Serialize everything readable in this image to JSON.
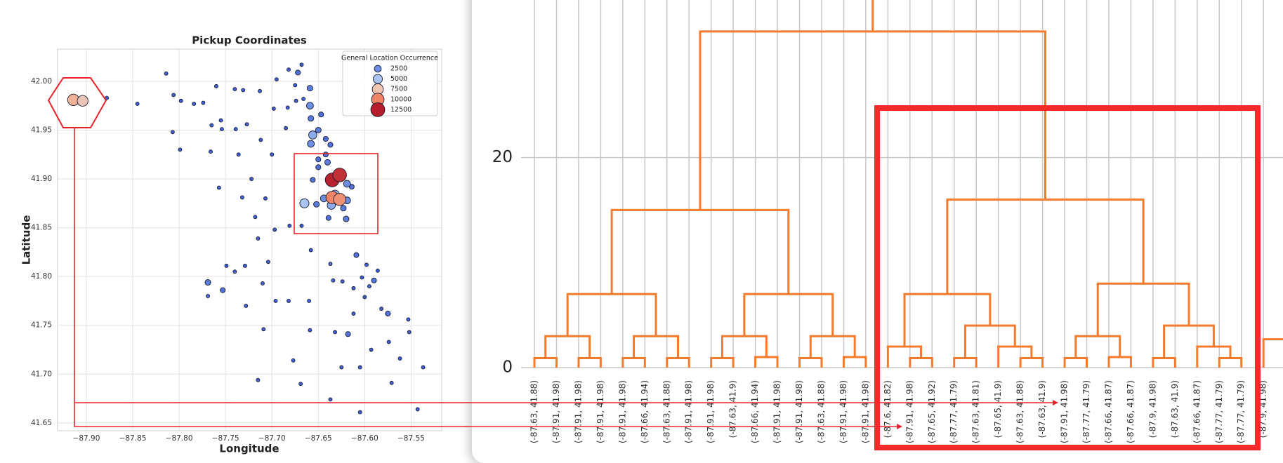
{
  "chart_data": [
    {
      "type": "scatter",
      "title": "Pickup Coordinates",
      "xlabel": "Longitude",
      "ylabel": "Latitude",
      "x": [
        -87.914,
        -87.904,
        -87.878,
        -87.814,
        -87.845,
        -87.806,
        -87.798,
        -87.784,
        -87.774,
        -87.807,
        -87.799,
        -87.76,
        -87.74,
        -87.731,
        -87.713,
        -87.765,
        -87.755,
        -87.754,
        -87.739,
        -87.727,
        -87.766,
        -87.736,
        -87.712,
        -87.722,
        -87.757,
        -87.732,
        -87.707,
        -87.718,
        -87.715,
        -87.749,
        -87.74,
        -87.729,
        -87.704,
        -87.769,
        -87.753,
        -87.769,
        -87.728,
        -87.71,
        -87.696,
        -87.682,
        -87.66,
        -87.709,
        -87.715,
        -87.677,
        -87.669,
        -87.659,
        -87.637,
        -87.605,
        -87.658,
        -87.697,
        -87.681,
        -87.668,
        -87.698,
        -87.695,
        -87.683,
        -87.682,
        -87.675,
        -87.668,
        -87.672,
        -87.685,
        -87.674,
        -87.666,
        -87.7,
        -87.637,
        -87.634,
        -87.624,
        -87.612,
        -87.609,
        -87.603,
        -87.598,
        -87.595,
        -87.59,
        -87.586,
        -87.612,
        -87.6,
        -87.618,
        -87.632,
        -87.625,
        -87.605,
        -87.593,
        -87.575,
        -87.582,
        -87.574,
        -87.562,
        -87.553,
        -87.552,
        -87.571,
        -87.543,
        -87.537,
        -87.659,
        -87.659,
        -87.658,
        -87.656,
        -87.658,
        -87.65,
        -87.647,
        -87.642,
        -87.637,
        -87.642,
        -87.65,
        -87.64,
        -87.632,
        -87.644,
        -87.619,
        -87.665,
        -87.636,
        -87.623,
        -87.62,
        -87.639,
        -87.652,
        -87.614,
        -87.656,
        -87.65,
        -87.619,
        -87.635,
        -87.627,
        -87.635,
        -87.627
      ],
      "y": [
        41.981,
        41.98,
        41.983,
        42.008,
        41.977,
        41.986,
        41.98,
        41.977,
        41.978,
        41.948,
        41.93,
        41.995,
        41.992,
        41.991,
        41.99,
        41.955,
        41.96,
        41.951,
        41.951,
        41.956,
        41.928,
        41.925,
        41.94,
        41.9,
        41.891,
        41.881,
        41.88,
        41.861,
        41.839,
        41.811,
        41.805,
        41.811,
        41.815,
        41.794,
        41.786,
        41.78,
        41.77,
        41.793,
        41.775,
        41.775,
        41.775,
        41.746,
        41.694,
        41.714,
        41.69,
        41.745,
        41.674,
        41.661,
        41.827,
        41.848,
        41.852,
        41.852,
        41.972,
        42.002,
        41.973,
        42.012,
        41.996,
        42.017,
        42.009,
        41.952,
        41.98,
        41.982,
        41.925,
        41.813,
        41.796,
        41.795,
        41.788,
        41.822,
        41.799,
        41.812,
        41.79,
        41.796,
        41.806,
        41.762,
        41.779,
        41.741,
        41.743,
        41.707,
        41.707,
        41.725,
        41.762,
        41.767,
        41.733,
        41.716,
        41.756,
        41.743,
        41.691,
        41.664,
        41.707,
        41.993,
        41.975,
        41.962,
        41.945,
        41.936,
        41.95,
        41.966,
        41.941,
        41.935,
        41.925,
        41.92,
        41.917,
        41.884,
        41.88,
        41.878,
        41.875,
        41.873,
        41.87,
        41.859,
        41.86,
        41.874,
        41.892,
        41.899,
        41.912,
        41.895,
        41.899,
        41.904,
        41.881,
        41.879
      ],
      "sizes": [
        8200,
        7200,
        100,
        100,
        100,
        100,
        100,
        100,
        100,
        100,
        100,
        100,
        100,
        100,
        100,
        100,
        100,
        100,
        100,
        100,
        100,
        100,
        100,
        100,
        100,
        100,
        100,
        100,
        100,
        100,
        100,
        100,
        100,
        1500,
        1000,
        100,
        100,
        100,
        100,
        100,
        100,
        100,
        100,
        100,
        100,
        100,
        100,
        100,
        100,
        100,
        100,
        100,
        100,
        100,
        100,
        100,
        100,
        100,
        1000,
        100,
        100,
        100,
        100,
        100,
        100,
        100,
        100,
        1000,
        100,
        100,
        100,
        1000,
        100,
        100,
        100,
        1000,
        100,
        100,
        100,
        100,
        1000,
        100,
        100,
        100,
        100,
        100,
        100,
        100,
        100,
        1500,
        2500,
        1500,
        3800,
        2500,
        1500,
        1000,
        1000,
        1000,
        1000,
        1000,
        1500,
        4500,
        2500,
        2500,
        5000,
        3800,
        1500,
        1500,
        1000,
        1500,
        1000,
        1000,
        1000,
        2500,
        12400,
        12000,
        10000,
        9500
      ],
      "xlim": [
        -87.931,
        -87.517
      ],
      "ylim": [
        41.642,
        42.033
      ],
      "xticks": [
        {
          "value": -87.9,
          "label": "−87.90"
        },
        {
          "value": -87.85,
          "label": "−87.85"
        },
        {
          "value": -87.8,
          "label": "−87.80"
        },
        {
          "value": -87.75,
          "label": "−87.75"
        },
        {
          "value": -87.7,
          "label": "−87.70"
        },
        {
          "value": -87.65,
          "label": "−87.65"
        },
        {
          "value": -87.6,
          "label": "−87.60"
        },
        {
          "value": -87.55,
          "label": "−87.55"
        }
      ],
      "yticks": [
        41.65,
        {
          "value": 41.7,
          "label": "41.70"
        },
        41.75,
        {
          "value": 41.8,
          "label": "41.80"
        },
        41.85,
        {
          "value": 41.9,
          "label": "41.90"
        },
        41.95,
        {
          "value": 42,
          "label": "42.00"
        }
      ],
      "grid": true,
      "low_color": "#3d5fd6",
      "edge_color": "#1b1b2f",
      "legend": {
        "title": "General Location Occurrence",
        "corner": "upper right",
        "sizes": [
          2500,
          5000,
          7500,
          10000,
          12500
        ],
        "colors": [
          "#6b8fe4",
          "#a9c4f2",
          "#f3c5ae",
          "#ee8466",
          "#b51d2c"
        ]
      }
    },
    {
      "type": "dendrogram",
      "color": "#f47a2c",
      "grid": true,
      "ylim": [
        0,
        35
      ],
      "yticks": [
        0,
        20
      ],
      "leaves": [
        "(-87.63, 41.88)",
        "(-87.91, 41.98)",
        "(-87.91, 41.98)",
        "(-87.91, 41.98)",
        "(-87.91, 41.98)",
        "(-87.66, 41.94)",
        "(-87.63, 41.88)",
        "(-87.91, 41.98)",
        "(-87.91, 41.98)",
        "(-87.63, 41.9)",
        "(-87.66, 41.94)",
        "(-87.91, 41.98)",
        "(-87.91, 41.98)",
        "(-87.63, 41.88)",
        "(-87.91, 41.98)",
        "(-87.91, 41.98)",
        "(-87.6, 41.82)",
        "(-87.91, 41.98)",
        "(-87.65, 41.92)",
        "(-87.77, 41.79)",
        "(-87.63, 41.81)",
        "(-87.65, 41.9)",
        "(-87.63, 41.88)",
        "(-87.63, 41.9)",
        "(-87.91, 41.98)",
        "(-87.77, 41.79)",
        "(-87.66, 41.87)",
        "(-87.66, 41.87)",
        "(-87.9, 41.98)",
        "(-87.63, 41.9)",
        "(-87.66, 41.87)",
        "(-87.77, 41.79)",
        "(-87.77, 41.79)",
        "(-87.9, 41.98)"
      ],
      "merges": [
        {
          "left": 0,
          "right": 1,
          "height": 0.9
        },
        {
          "left": 2,
          "right": 3,
          "height": 0.9
        },
        {
          "left": 34,
          "right": 35,
          "height": 3
        },
        {
          "left": 4,
          "right": 5,
          "height": 0.9
        },
        {
          "left": 6,
          "right": 7,
          "height": 0.9
        },
        {
          "left": 37,
          "right": 38,
          "height": 3
        },
        {
          "left": 36,
          "right": 39,
          "height": 7
        },
        {
          "left": 8,
          "right": 9,
          "height": 0.9
        },
        {
          "left": 10,
          "right": 11,
          "height": 1
        },
        {
          "left": 41,
          "right": 42,
          "height": 3
        },
        {
          "left": 12,
          "right": 13,
          "height": 0.9
        },
        {
          "left": 14,
          "right": 15,
          "height": 1
        },
        {
          "left": 44,
          "right": 45,
          "height": 3
        },
        {
          "left": 43,
          "right": 46,
          "height": 7
        },
        {
          "left": 40,
          "right": 47,
          "height": 15
        },
        {
          "left": 17,
          "right": 18,
          "height": 0.9
        },
        {
          "left": 16,
          "right": 49,
          "height": 2
        },
        {
          "left": 19,
          "right": 20,
          "height": 0.9
        },
        {
          "left": 22,
          "right": 23,
          "height": 0.9
        },
        {
          "left": 21,
          "right": 52,
          "height": 2
        },
        {
          "left": 51,
          "right": 53,
          "height": 4
        },
        {
          "left": 50,
          "right": 54,
          "height": 7
        },
        {
          "left": 24,
          "right": 25,
          "height": 0.9
        },
        {
          "left": 26,
          "right": 27,
          "height": 1
        },
        {
          "left": 56,
          "right": 57,
          "height": 3
        },
        {
          "left": 28,
          "right": 29,
          "height": 0.9
        },
        {
          "left": 31,
          "right": 32,
          "height": 0.9
        },
        {
          "left": 30,
          "right": 60,
          "height": 2
        },
        {
          "left": 59,
          "right": 61,
          "height": 4
        },
        {
          "left": 58,
          "right": 62,
          "height": 8
        },
        {
          "left": 55,
          "right": 63,
          "height": 16
        },
        {
          "left": 48,
          "right": 64,
          "height": 32
        }
      ],
      "open_branch": {
        "leaf": 33,
        "height": 2.7
      }
    }
  ]
}
